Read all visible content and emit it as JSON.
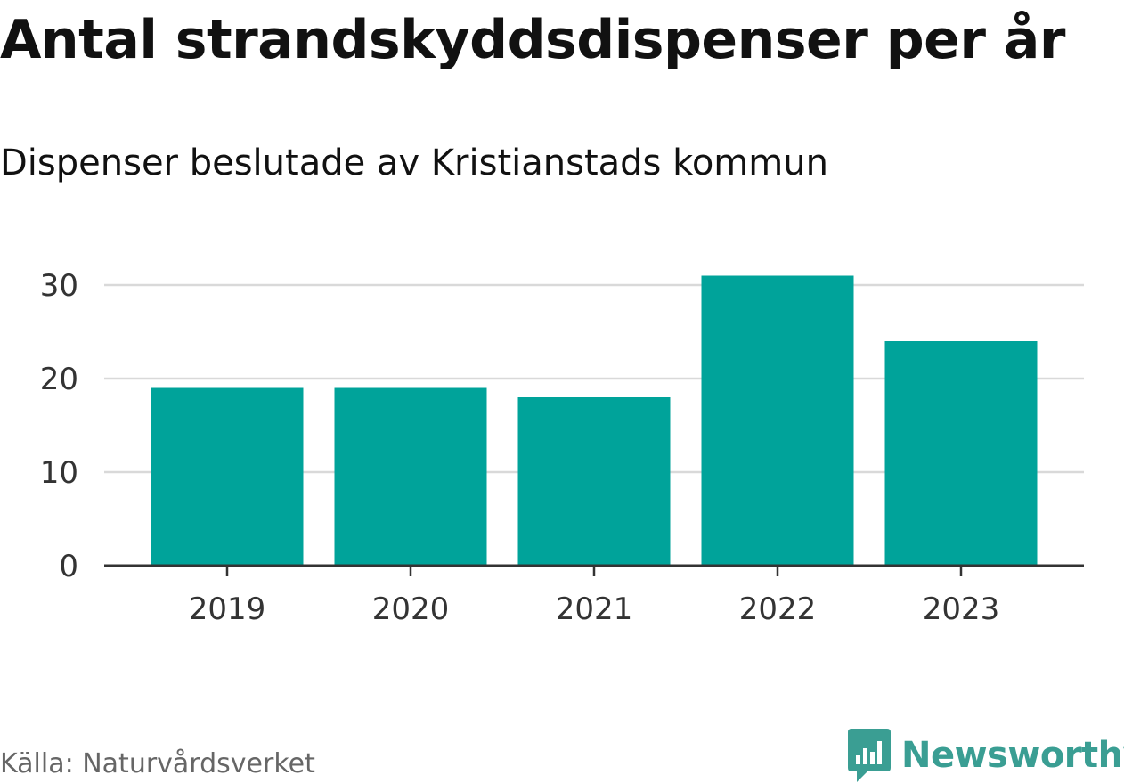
{
  "chart_data": {
    "type": "bar",
    "title": "Antal strandskyddsdispenser per år",
    "subtitle": "Dispenser beslutade av Kristianstads kommun",
    "categories": [
      "2019",
      "2020",
      "2021",
      "2022",
      "2023"
    ],
    "values": [
      19,
      19,
      18,
      31,
      24
    ],
    "yticks": [
      "0",
      "10",
      "20",
      "30"
    ],
    "ylim": [
      0,
      30
    ],
    "xlabel": "",
    "ylabel": "",
    "grid": true,
    "bar_color": "#00a39a"
  },
  "footer": {
    "source": "Källa: Naturvårdsverket",
    "brand": "Newsworthy",
    "brand_icon": "bar-chart-speech-bubble-icon",
    "brand_color": "#3a9e93"
  }
}
